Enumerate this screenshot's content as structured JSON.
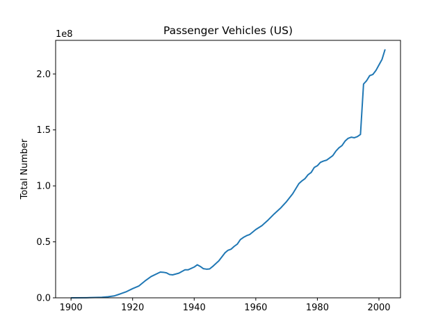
{
  "chart_data": {
    "type": "line",
    "title": "Passenger Vehicles (US)",
    "xlabel": "",
    "ylabel": "Total Number",
    "y_offset_label": "1e8",
    "xlim": [
      1895,
      2007
    ],
    "ylim": [
      0,
      2.3
    ],
    "x_ticks": [
      1900,
      1920,
      1940,
      1960,
      1980,
      2000
    ],
    "y_ticks": [
      0.0,
      0.5,
      1.0,
      1.5,
      2.0
    ],
    "y_tick_labels": [
      "0.0",
      "0.5",
      "1.0",
      "1.5",
      "2.0"
    ],
    "grid": false,
    "legend": "none",
    "color": "#1f77b4",
    "series": [
      {
        "x": [
          1900,
          1905,
          1910,
          1912,
          1914,
          1916,
          1918,
          1920,
          1922,
          1924,
          1926,
          1929,
          1930,
          1931,
          1932,
          1933,
          1935,
          1937,
          1938,
          1940,
          1941,
          1942,
          1943,
          1944,
          1945,
          1946,
          1948,
          1950,
          1951,
          1952,
          1953,
          1954,
          1955,
          1956,
          1957,
          1958,
          1960,
          1962,
          1964,
          1966,
          1968,
          1970,
          1972,
          1973,
          1974,
          1975,
          1976,
          1977,
          1978,
          1979,
          1980,
          1981,
          1982,
          1983,
          1984,
          1985,
          1986,
          1987,
          1988,
          1989,
          1990,
          1991,
          1992,
          1993,
          1994,
          1995,
          1996,
          1997,
          1998,
          1999,
          2000,
          2001,
          2002
        ],
        "y": [
          0.0,
          0.001,
          0.005,
          0.009,
          0.017,
          0.035,
          0.055,
          0.082,
          0.105,
          0.15,
          0.19,
          0.23,
          0.228,
          0.223,
          0.208,
          0.205,
          0.22,
          0.25,
          0.25,
          0.275,
          0.295,
          0.28,
          0.26,
          0.256,
          0.258,
          0.28,
          0.33,
          0.402,
          0.425,
          0.435,
          0.46,
          0.48,
          0.52,
          0.54,
          0.555,
          0.565,
          0.61,
          0.645,
          0.695,
          0.75,
          0.8,
          0.86,
          0.93,
          0.975,
          1.02,
          1.045,
          1.065,
          1.1,
          1.12,
          1.165,
          1.18,
          1.21,
          1.222,
          1.23,
          1.25,
          1.27,
          1.31,
          1.34,
          1.36,
          1.4,
          1.425,
          1.435,
          1.43,
          1.44,
          1.46,
          1.91,
          1.94,
          1.985,
          1.995,
          2.03,
          2.08,
          2.13,
          2.22
        ]
      }
    ]
  }
}
